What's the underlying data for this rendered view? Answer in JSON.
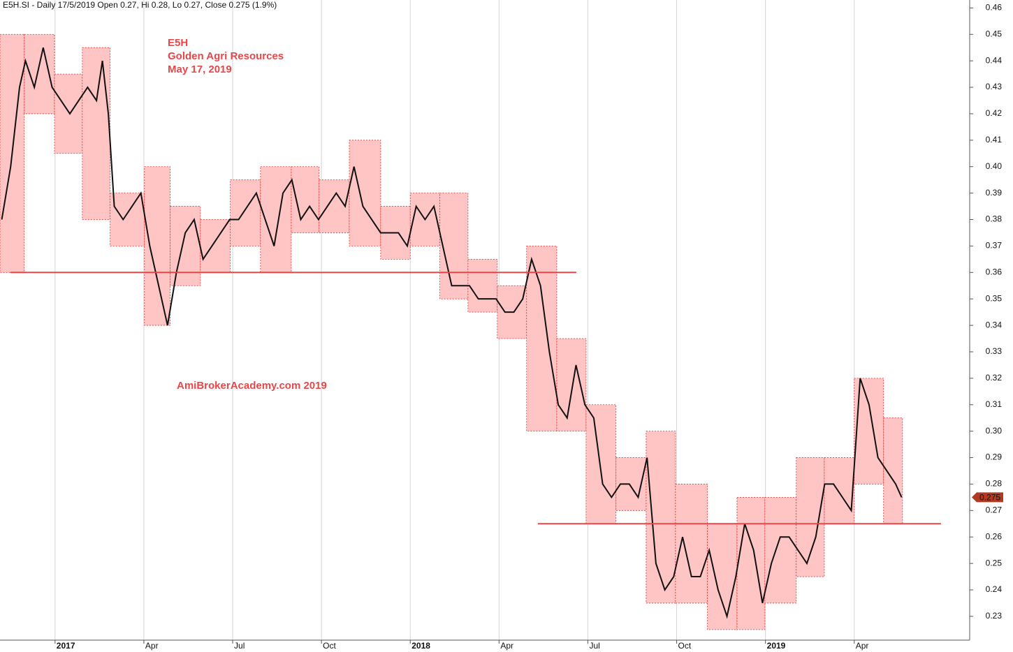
{
  "chart_data": {
    "type": "line",
    "title": "E5H.SI - Daily 17/5/2019 Open 0.27, Hi 0.28, Lo 0.27, Close 0.275 (1.9%)",
    "annotations": [
      "E5H",
      "Golden Agri Resources",
      "May 17, 2019",
      "AmiBrokerAcademy.com  2019"
    ],
    "xlim": [
      -1.86,
      30.9
    ],
    "xticks": [
      {
        "value": 0,
        "label": "2017"
      },
      {
        "value": 3,
        "label": "Apr"
      },
      {
        "value": 6,
        "label": "Jul"
      },
      {
        "value": 9,
        "label": "Oct"
      },
      {
        "value": 12,
        "label": "2018"
      },
      {
        "value": 15,
        "label": "Apr"
      },
      {
        "value": 18,
        "label": "Jul"
      },
      {
        "value": 21,
        "label": "Oct"
      },
      {
        "value": 24,
        "label": "2019"
      },
      {
        "value": 27,
        "label": "Apr"
      }
    ],
    "ylim": [
      0.221,
      0.463
    ],
    "yticks": [
      0.23,
      0.24,
      0.25,
      0.26,
      0.27,
      0.28,
      0.29,
      {
        "value": 0.3,
        "label": "0.30"
      },
      0.31,
      0.32,
      0.33,
      0.34,
      0.35,
      0.36,
      0.37,
      0.38,
      0.39,
      {
        "value": 0.4,
        "label": "0.40"
      },
      0.41,
      0.42,
      0.43,
      0.44,
      0.45,
      0.46
    ],
    "grid": "x",
    "last_value": 0.275,
    "last_value_color": "#b03a22",
    "series": [
      {
        "name": "E5H.SI",
        "color": "#111111",
        "x": [
          -1.8,
          -1.5,
          -1.2,
          -1.0,
          -0.7,
          -0.4,
          -0.1,
          0.2,
          0.5,
          0.8,
          1.1,
          1.4,
          1.6,
          1.8,
          2.0,
          2.3,
          2.6,
          2.9,
          3.2,
          3.5,
          3.8,
          4.1,
          4.4,
          4.7,
          5.0,
          5.3,
          5.6,
          5.9,
          6.2,
          6.5,
          6.8,
          7.1,
          7.4,
          7.7,
          8.0,
          8.3,
          8.6,
          8.9,
          9.2,
          9.5,
          9.8,
          10.1,
          10.4,
          10.7,
          11.0,
          11.3,
          11.6,
          11.9,
          12.2,
          12.5,
          12.8,
          13.1,
          13.4,
          13.7,
          14.0,
          14.3,
          14.6,
          14.9,
          15.2,
          15.5,
          15.8,
          16.1,
          16.4,
          16.7,
          17.0,
          17.3,
          17.6,
          17.9,
          18.2,
          18.5,
          18.8,
          19.1,
          19.4,
          19.7,
          20.0,
          20.3,
          20.6,
          20.9,
          21.2,
          21.5,
          21.8,
          22.1,
          22.4,
          22.7,
          23.0,
          23.3,
          23.6,
          23.9,
          24.2,
          24.5,
          24.8,
          25.1,
          25.4,
          25.7,
          26.0,
          26.3,
          26.6,
          26.9,
          27.2,
          27.5,
          27.8,
          28.1,
          28.4,
          28.6
        ],
        "values": [
          0.38,
          0.4,
          0.43,
          0.44,
          0.43,
          0.445,
          0.43,
          0.425,
          0.42,
          0.425,
          0.43,
          0.425,
          0.44,
          0.42,
          0.385,
          0.38,
          0.385,
          0.39,
          0.37,
          0.355,
          0.34,
          0.36,
          0.375,
          0.38,
          0.365,
          0.37,
          0.375,
          0.38,
          0.38,
          0.385,
          0.39,
          0.38,
          0.37,
          0.39,
          0.395,
          0.38,
          0.385,
          0.38,
          0.385,
          0.39,
          0.385,
          0.4,
          0.385,
          0.38,
          0.375,
          0.375,
          0.375,
          0.37,
          0.385,
          0.38,
          0.385,
          0.37,
          0.355,
          0.355,
          0.355,
          0.35,
          0.35,
          0.35,
          0.345,
          0.345,
          0.35,
          0.365,
          0.355,
          0.33,
          0.31,
          0.305,
          0.325,
          0.31,
          0.305,
          0.28,
          0.275,
          0.28,
          0.28,
          0.275,
          0.29,
          0.25,
          0.24,
          0.245,
          0.26,
          0.245,
          0.245,
          0.255,
          0.24,
          0.23,
          0.245,
          0.265,
          0.255,
          0.235,
          0.25,
          0.26,
          0.26,
          0.255,
          0.25,
          0.26,
          0.28,
          0.28,
          0.275,
          0.27,
          0.32,
          0.31,
          0.29,
          0.285,
          0.28,
          0.275
        ]
      }
    ],
    "ranges": {
      "fill": "#ffc4c4",
      "stroke": "#e0302e",
      "boxes": [
        {
          "x0": -1.86,
          "x1": -1.04,
          "low": 0.36,
          "high": 0.45
        },
        {
          "x0": -1.04,
          "x1": -0.02,
          "low": 0.42,
          "high": 0.45
        },
        {
          "x0": -0.02,
          "x1": 0.92,
          "low": 0.405,
          "high": 0.435
        },
        {
          "x0": 0.92,
          "x1": 1.86,
          "low": 0.38,
          "high": 0.445
        },
        {
          "x0": 1.86,
          "x1": 3.02,
          "low": 0.37,
          "high": 0.39
        },
        {
          "x0": 3.02,
          "x1": 3.89,
          "low": 0.34,
          "high": 0.4
        },
        {
          "x0": 3.89,
          "x1": 4.91,
          "low": 0.355,
          "high": 0.385
        },
        {
          "x0": 4.91,
          "x1": 5.92,
          "low": 0.36,
          "high": 0.38
        },
        {
          "x0": 5.92,
          "x1": 6.94,
          "low": 0.37,
          "high": 0.395
        },
        {
          "x0": 6.94,
          "x1": 7.98,
          "low": 0.36,
          "high": 0.4
        },
        {
          "x0": 7.98,
          "x1": 8.92,
          "low": 0.375,
          "high": 0.4
        },
        {
          "x0": 8.92,
          "x1": 9.94,
          "low": 0.375,
          "high": 0.395
        },
        {
          "x0": 9.94,
          "x1": 11.0,
          "low": 0.37,
          "high": 0.41
        },
        {
          "x0": 11.0,
          "x1": 12.0,
          "low": 0.365,
          "high": 0.385
        },
        {
          "x0": 12.0,
          "x1": 13.0,
          "low": 0.37,
          "high": 0.39
        },
        {
          "x0": 13.0,
          "x1": 13.95,
          "low": 0.35,
          "high": 0.39
        },
        {
          "x0": 13.95,
          "x1": 14.94,
          "low": 0.345,
          "high": 0.365
        },
        {
          "x0": 14.94,
          "x1": 15.93,
          "low": 0.335,
          "high": 0.355
        },
        {
          "x0": 15.93,
          "x1": 16.95,
          "low": 0.3,
          "high": 0.37
        },
        {
          "x0": 16.95,
          "x1": 17.94,
          "low": 0.3,
          "high": 0.335
        },
        {
          "x0": 17.94,
          "x1": 18.95,
          "low": 0.265,
          "high": 0.31
        },
        {
          "x0": 18.95,
          "x1": 19.97,
          "low": 0.27,
          "high": 0.29
        },
        {
          "x0": 19.97,
          "x1": 20.96,
          "low": 0.235,
          "high": 0.3
        },
        {
          "x0": 20.96,
          "x1": 22.04,
          "low": 0.235,
          "high": 0.28
        },
        {
          "x0": 22.04,
          "x1": 23.04,
          "low": 0.225,
          "high": 0.265
        },
        {
          "x0": 23.04,
          "x1": 23.98,
          "low": 0.225,
          "high": 0.275
        },
        {
          "x0": 23.98,
          "x1": 25.04,
          "low": 0.235,
          "high": 0.275
        },
        {
          "x0": 25.04,
          "x1": 25.99,
          "low": 0.245,
          "high": 0.29
        },
        {
          "x0": 25.99,
          "x1": 27.0,
          "low": 0.265,
          "high": 0.29
        },
        {
          "x0": 27.0,
          "x1": 27.99,
          "low": 0.28,
          "high": 0.32
        },
        {
          "x0": 27.99,
          "x1": 28.63,
          "low": 0.265,
          "high": 0.305
        }
      ]
    },
    "levels": {
      "color": "#e8474a",
      "lines": [
        {
          "value": 0.36,
          "x0": -1.51,
          "x1": 17.61
        },
        {
          "value": 0.265,
          "x0": 16.31,
          "x1": 29.93
        }
      ]
    }
  }
}
